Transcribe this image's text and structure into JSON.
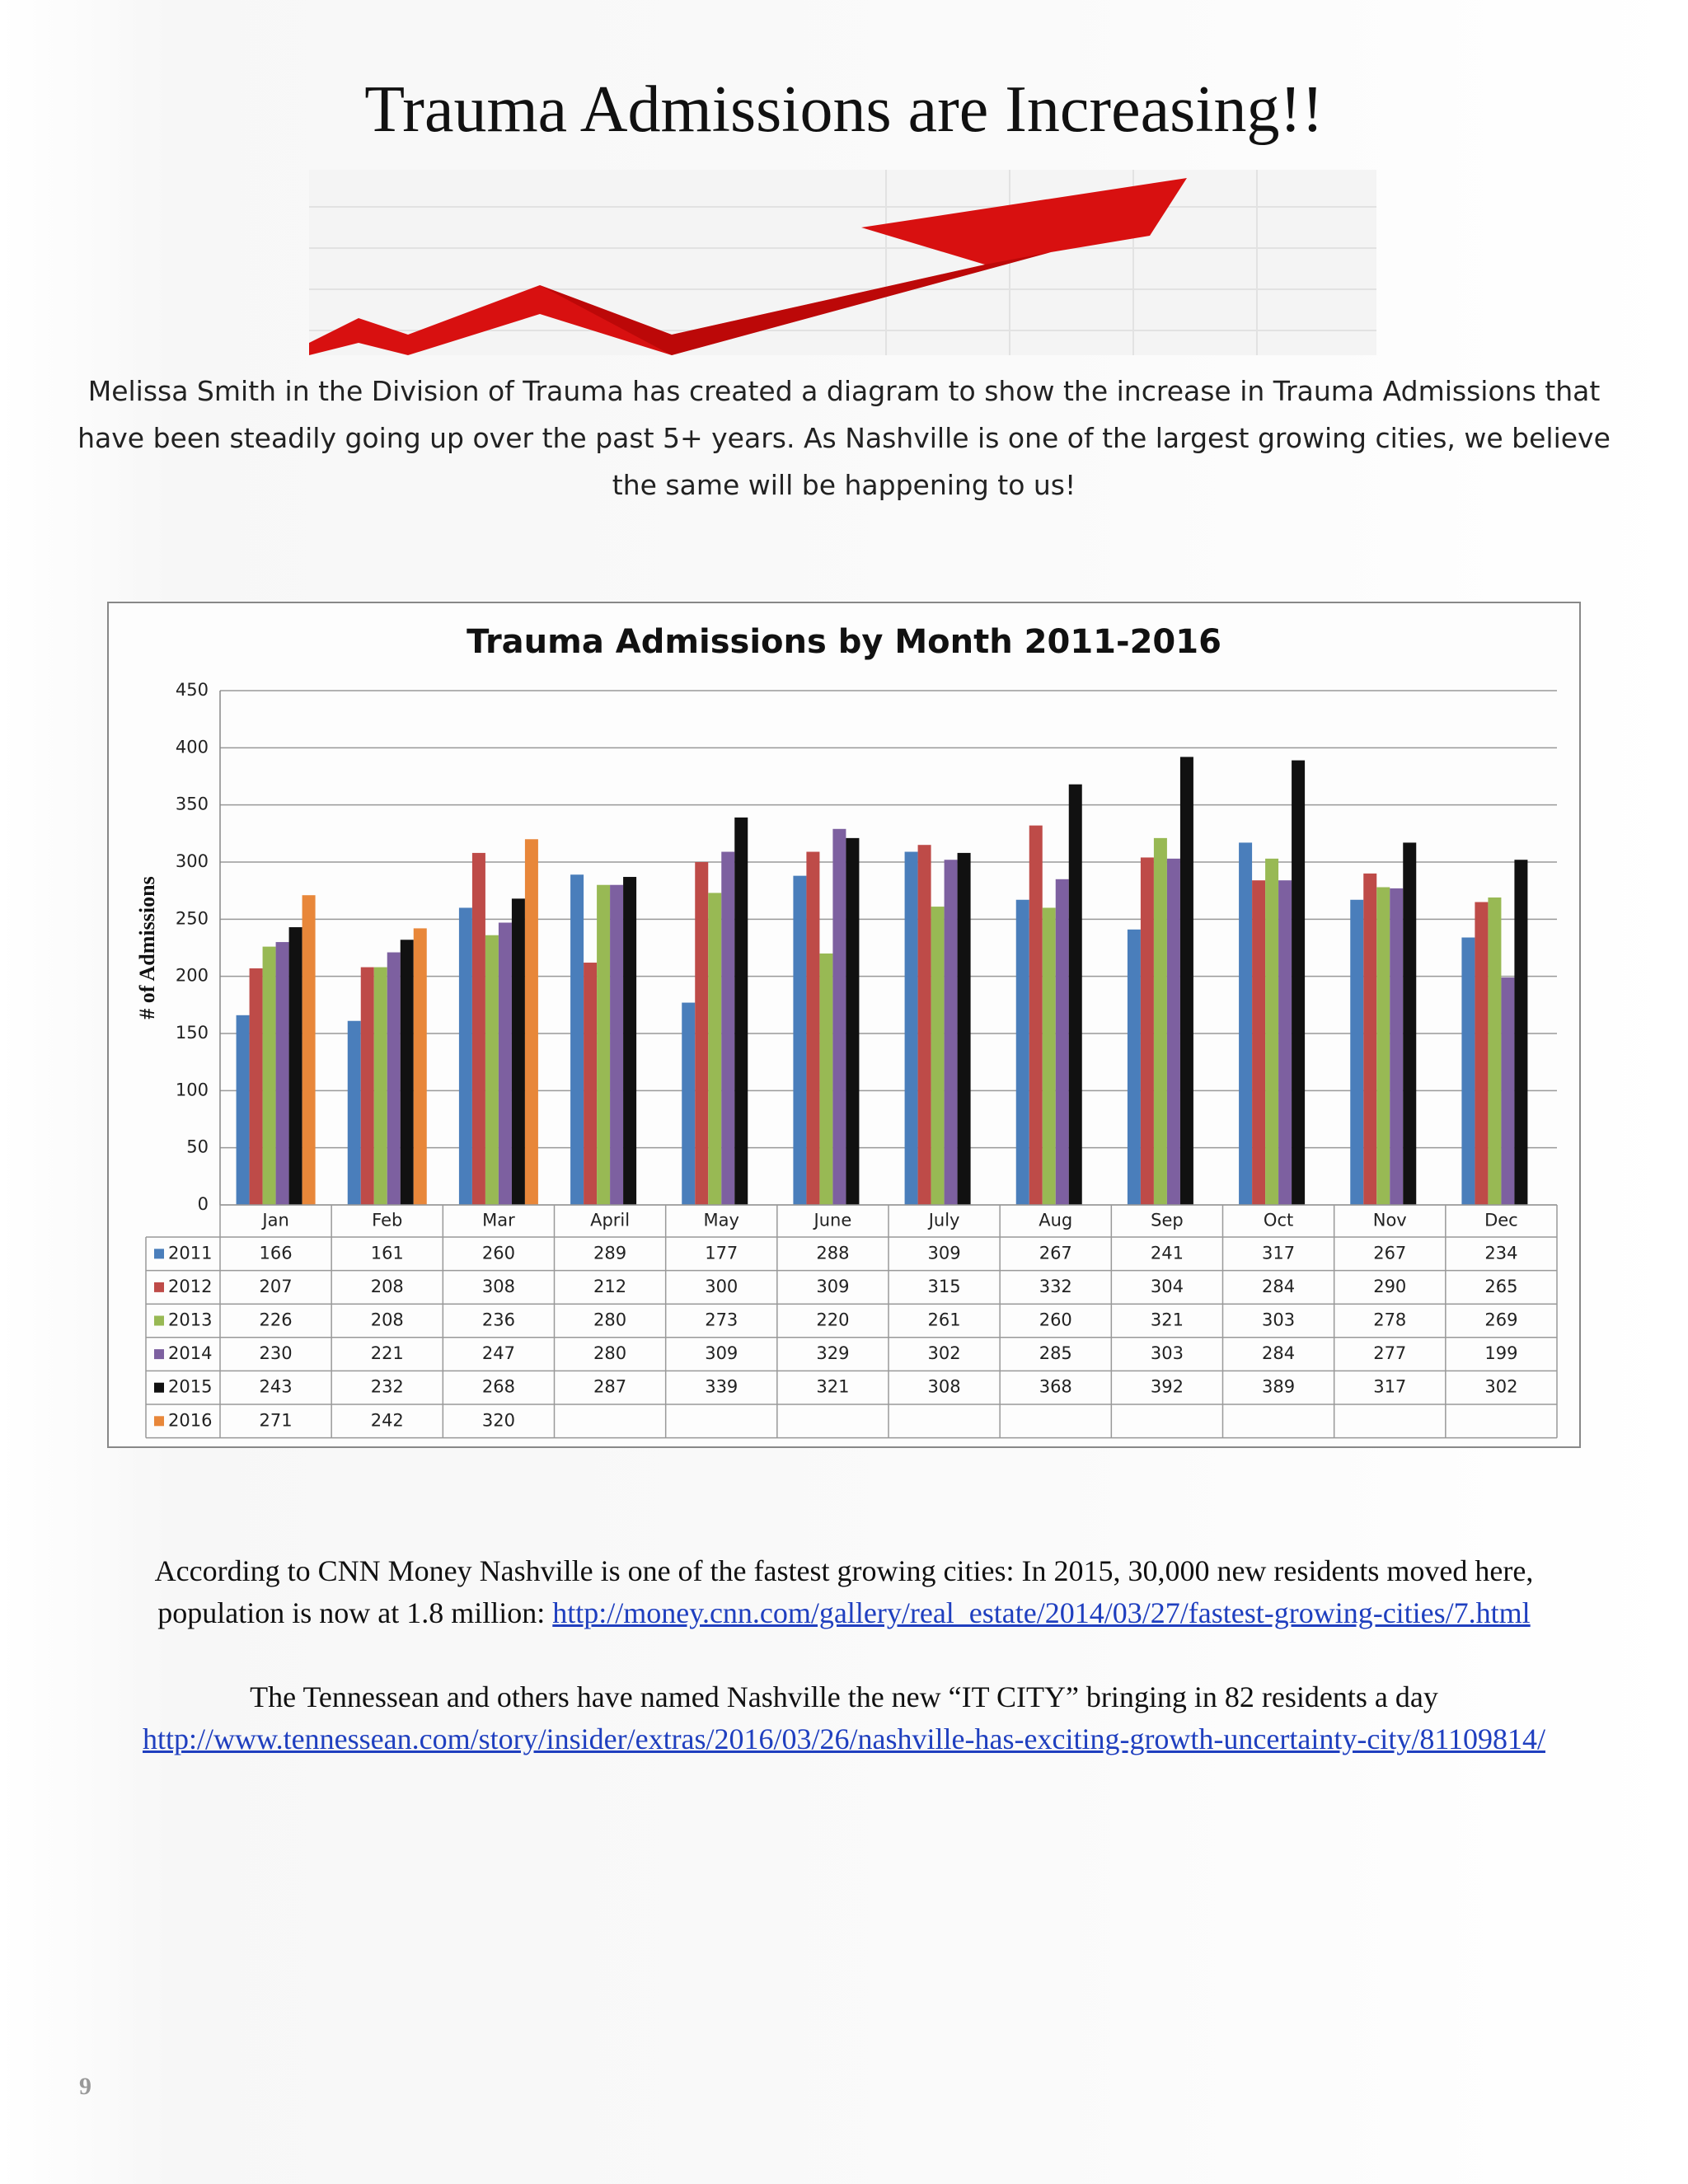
{
  "title": "Trauma Admissions are Increasing!!",
  "intro": "Melissa Smith in the Division of Trauma has created a diagram to show the increase in Trauma Admissions that have been steadily going up over the past 5+ years.  As Nashville is one of the largest growing cities, we believe the same will be happening to us!",
  "chart_data": {
    "type": "bar",
    "title": "Trauma Admissions by Month 2011-2016",
    "y_label": "# of Admissions",
    "categories": [
      "Jan",
      "Feb",
      "Mar",
      "April",
      "May",
      "June",
      "July",
      "Aug",
      "Sep",
      "Oct",
      "Nov",
      "Dec"
    ],
    "series": [
      {
        "name": "2011",
        "color": "#4a7ebb",
        "values": [
          166,
          161,
          260,
          289,
          177,
          288,
          309,
          267,
          241,
          317,
          267,
          234
        ]
      },
      {
        "name": "2012",
        "color": "#be4b48",
        "values": [
          207,
          208,
          308,
          212,
          300,
          309,
          315,
          332,
          304,
          284,
          290,
          265
        ]
      },
      {
        "name": "2013",
        "color": "#98b954",
        "values": [
          226,
          208,
          236,
          280,
          273,
          220,
          261,
          260,
          321,
          303,
          278,
          269
        ]
      },
      {
        "name": "2014",
        "color": "#7d60a0",
        "values": [
          230,
          221,
          247,
          280,
          309,
          329,
          302,
          285,
          303,
          284,
          277,
          199
        ]
      },
      {
        "name": "2015",
        "color": "#111111",
        "values": [
          243,
          232,
          268,
          287,
          339,
          321,
          308,
          368,
          392,
          389,
          317,
          302
        ]
      },
      {
        "name": "2016",
        "color": "#e8873a",
        "values": [
          271,
          242,
          320,
          null,
          null,
          null,
          null,
          null,
          null,
          null,
          null,
          null
        ]
      }
    ],
    "ylim": [
      0,
      450
    ],
    "yticks": [
      0,
      50,
      100,
      150,
      200,
      250,
      300,
      350,
      400,
      450
    ],
    "grid": true,
    "data_table": true
  },
  "footer": {
    "line1": "According to CNN Money Nashville is one of the fastest growing cities: In 2015, 30,000 new residents moved here,",
    "line2": "population is now at 1.8 million:",
    "link1": "http://money.cnn.com/gallery/real_estate/2014/03/27/fastest-growing-cities/7.html",
    "line3": "The Tennessean and others have named Nashville the new “IT CITY” bringing in 82 residents a day",
    "link2": "http://www.tennessean.com/story/insider/extras/2016/03/26/nashville-has-exciting-growth-uncertainty-city/81109814/"
  },
  "page_number": "9"
}
